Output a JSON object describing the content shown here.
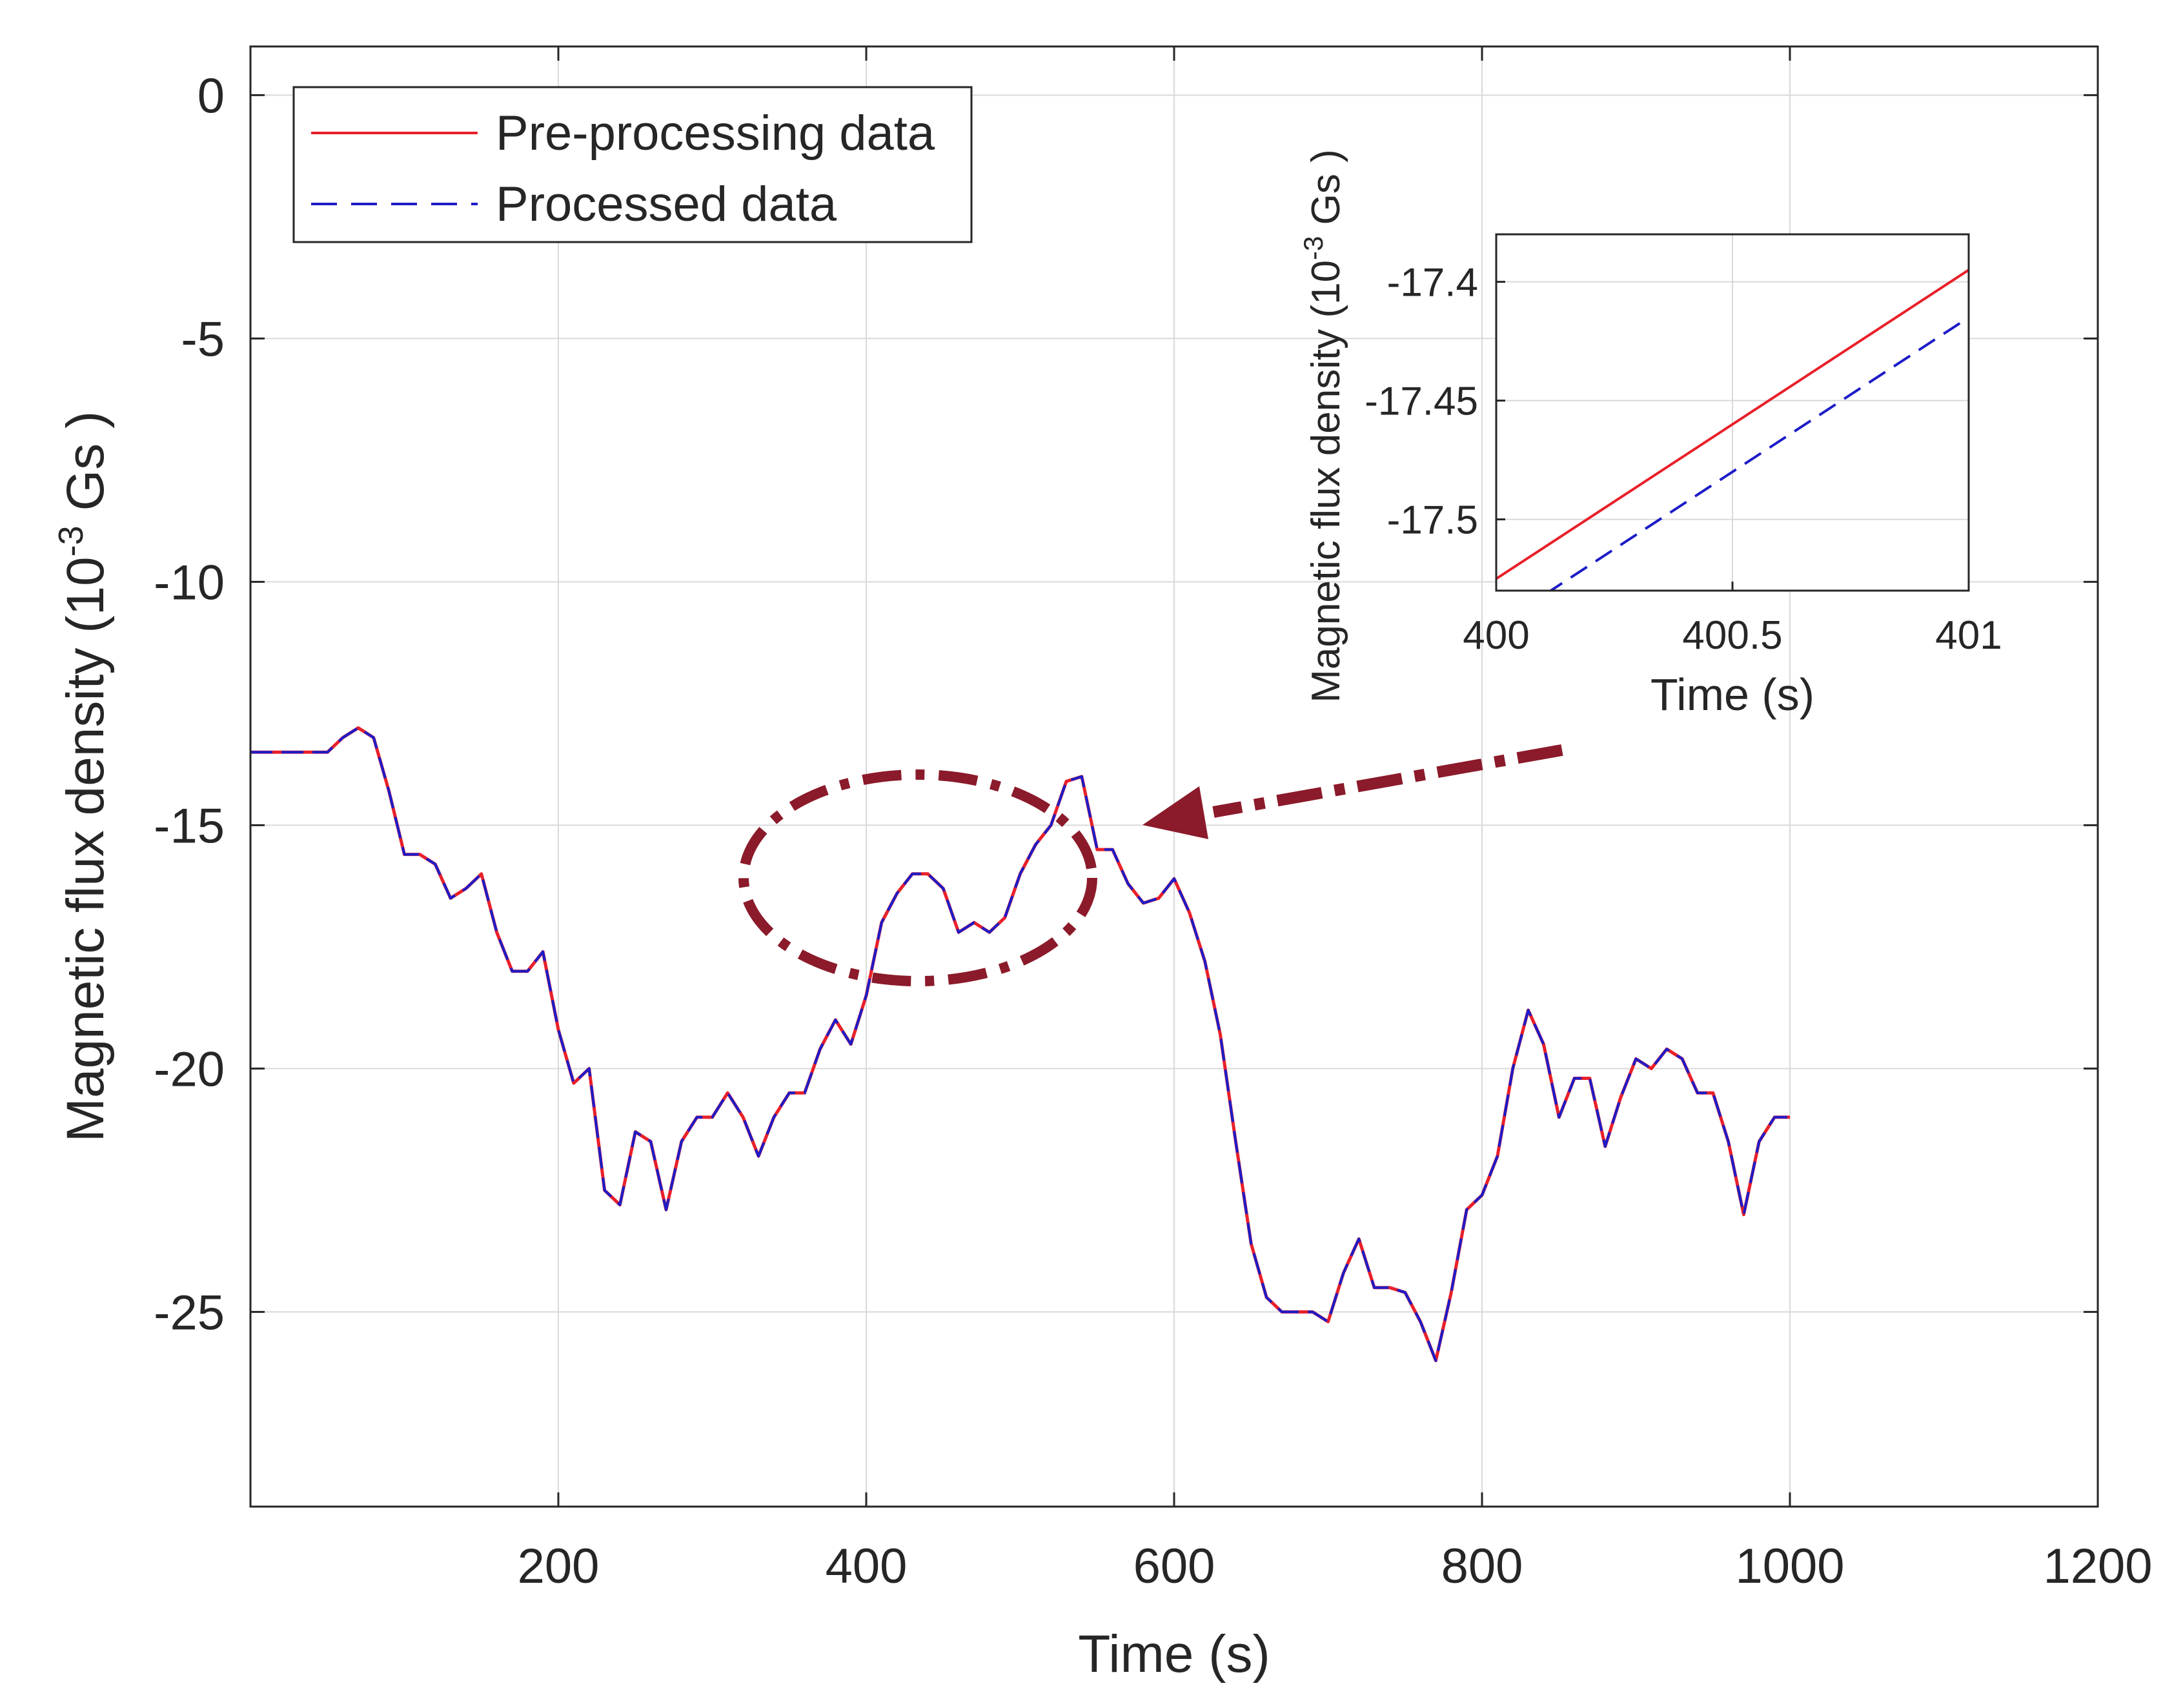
{
  "chart_data": [
    {
      "type": "line",
      "title": "",
      "xlabel": "Time (s)",
      "ylabel_main": "Magnetic flux density (10",
      "ylabel_sup": "-3",
      "ylabel_tail": " Gs )",
      "xlim": [
        0,
        1200
      ],
      "ylim": [
        -29,
        1
      ],
      "xticks": [
        200,
        400,
        600,
        800,
        1000,
        1200
      ],
      "xtick_labels": [
        "200",
        "400",
        "600",
        "800",
        "1000",
        "1200"
      ],
      "yticks": [
        0,
        -5,
        -10,
        -15,
        -20,
        -25
      ],
      "ytick_labels": [
        "0",
        "-5",
        "-10",
        "-15",
        "-20",
        "-25"
      ],
      "grid": true,
      "legend_position": "top-left",
      "legend": [
        "Pre-processing data",
        "Processed data"
      ],
      "colors": {
        "pre": "#e8202a",
        "processed": "#1c1cc8",
        "annotation": "#8b1a2a",
        "grid": "#d9d9d9",
        "axis": "#262626"
      },
      "series": [
        {
          "name": "Pre-processing data",
          "style": "solid",
          "x": [
            0,
            50,
            60,
            70,
            80,
            90,
            100,
            110,
            120,
            130,
            140,
            150,
            160,
            170,
            180,
            190,
            200,
            210,
            220,
            230,
            240,
            250,
            260,
            270,
            280,
            290,
            300,
            310,
            320,
            330,
            340,
            350,
            360,
            370,
            380,
            390,
            400,
            410,
            420,
            430,
            440,
            450,
            460,
            470,
            480,
            490,
            500,
            510,
            520,
            530,
            540,
            550,
            560,
            570,
            580,
            590,
            600,
            610,
            620,
            630,
            640,
            650,
            660,
            670,
            680,
            690,
            700,
            710,
            720,
            730,
            740,
            750,
            760,
            770,
            780,
            790,
            800,
            810,
            820,
            830,
            840,
            850,
            860,
            870,
            880,
            890,
            900,
            910,
            920,
            930,
            940,
            950,
            960,
            970,
            980,
            990,
            1000
          ],
          "y": [
            -13.5,
            -13.5,
            -13.2,
            -13,
            -13.2,
            -14.3,
            -15.6,
            -15.6,
            -15.8,
            -16.5,
            -16.3,
            -16,
            -17.2,
            -18,
            -18,
            -17.6,
            -19.2,
            -20.3,
            -20,
            -22.5,
            -22.8,
            -21.3,
            -21.5,
            -22.9,
            -21.5,
            -21,
            -21,
            -20.5,
            -21,
            -21.8,
            -21,
            -20.5,
            -20.5,
            -19.6,
            -19,
            -19.5,
            -18.5,
            -17,
            -16.4,
            -16,
            -16,
            -16.3,
            -17.2,
            -17,
            -17.2,
            -16.9,
            -16,
            -15.4,
            -15,
            -14.1,
            -14,
            -15.5,
            -15.5,
            -16.2,
            -16.6,
            -16.5,
            -16.1,
            -16.8,
            -17.8,
            -19.3,
            -21.5,
            -23.6,
            -24.7,
            -25,
            -25,
            -25,
            -25.2,
            -24.2,
            -23.5,
            -24.5,
            -24.5,
            -24.6,
            -25.2,
            -26,
            -24.6,
            -22.9,
            -22.6,
            -21.8,
            -20,
            -18.8,
            -19.5,
            -21,
            -20.2,
            -20.2,
            -21.6,
            -20.6,
            -19.8,
            -20,
            -19.6,
            -19.8,
            -20.5,
            -20.5,
            -21.5,
            -23,
            -21.5,
            -21,
            -21
          ],
          "inset_y_at_400": -17.525,
          "inset_y_at_401": -17.395
        },
        {
          "name": "Processed data",
          "style": "dashed",
          "same_as": "Pre-processing data",
          "inset_y_at_400": -17.545,
          "inset_y_at_401": -17.415
        }
      ]
    },
    {
      "type": "line",
      "role": "inset",
      "xlabel": "Time (s)",
      "ylabel_main": "Magnetic flux density (10",
      "ylabel_sup": "-3",
      "ylabel_tail": " Gs )",
      "xlim": [
        400,
        401
      ],
      "ylim": [
        -17.53,
        -17.38
      ],
      "xticks": [
        400,
        400.5,
        401
      ],
      "xtick_labels": [
        "400",
        "400.5",
        "401"
      ],
      "yticks": [
        -17.4,
        -17.45,
        -17.5
      ],
      "ytick_labels": [
        "-17.4",
        "-17.45",
        "-17.5"
      ],
      "grid": true
    }
  ]
}
